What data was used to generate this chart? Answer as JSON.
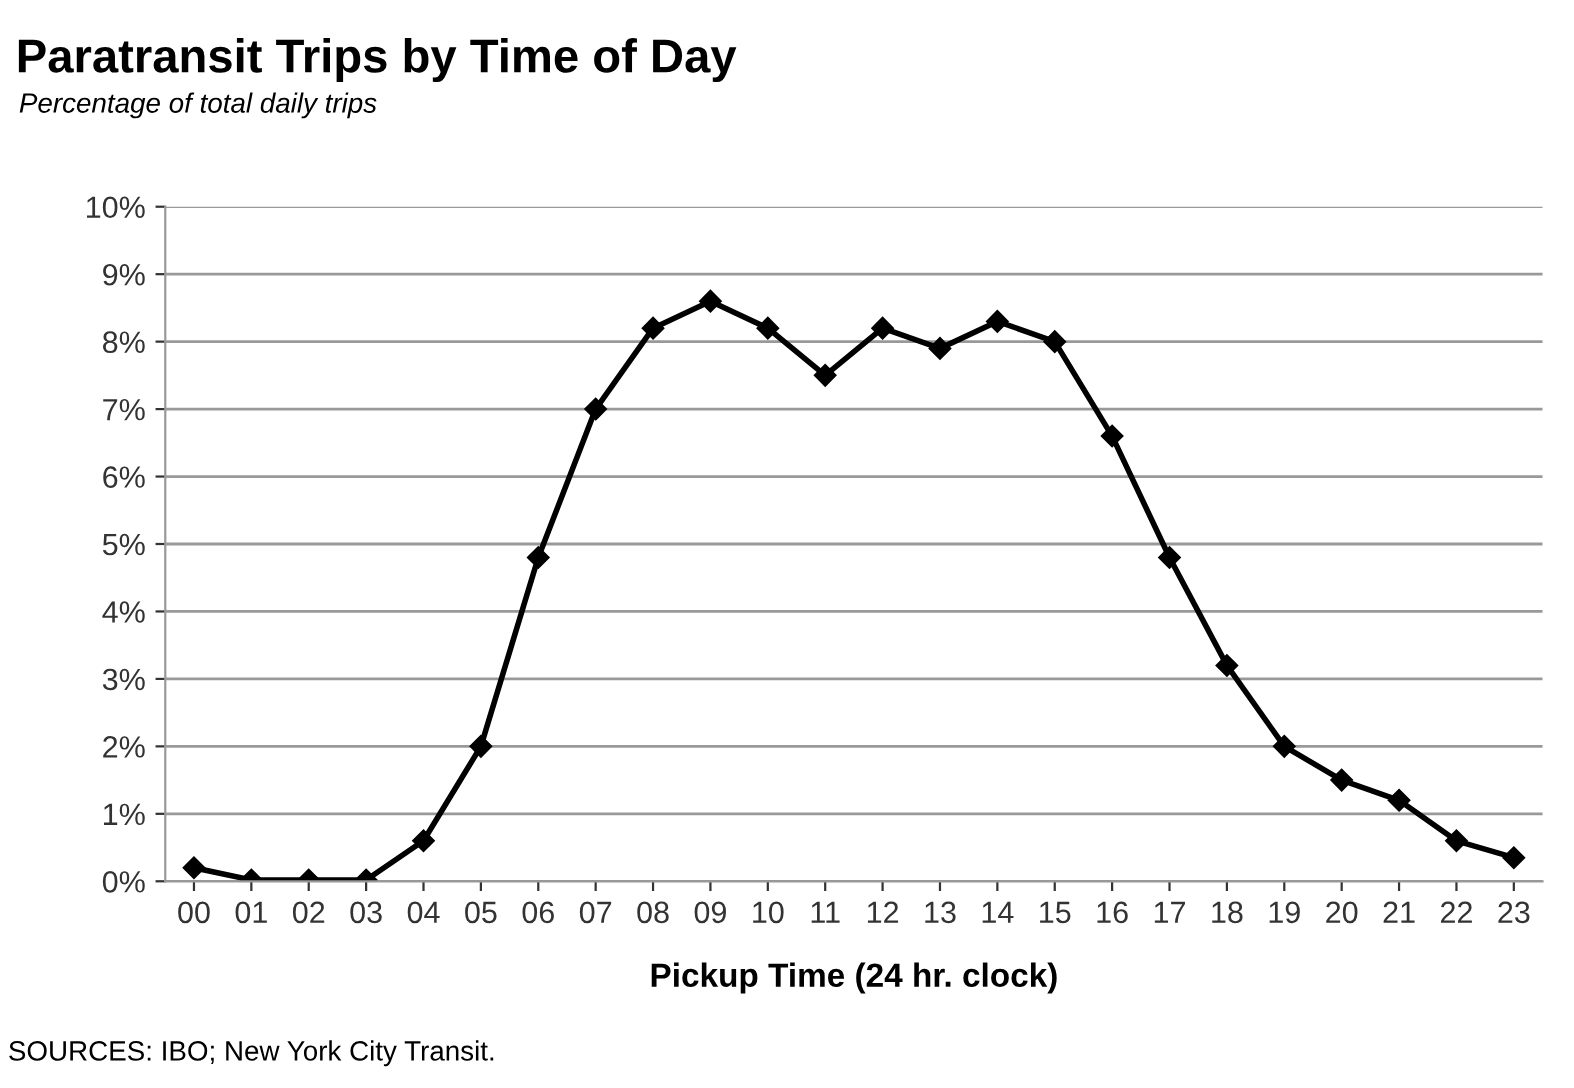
{
  "chart_data": {
    "type": "line",
    "title": "Paratransit Trips by Time of Day",
    "subtitle": "Percentage of total daily trips",
    "xlabel": "Pickup Time (24 hr. clock)",
    "categories": [
      "00",
      "01",
      "02",
      "03",
      "04",
      "05",
      "06",
      "07",
      "08",
      "09",
      "10",
      "11",
      "12",
      "13",
      "14",
      "15",
      "16",
      "17",
      "18",
      "19",
      "20",
      "21",
      "22",
      "23"
    ],
    "series": [
      {
        "color": "#000000",
        "values": [
          0.2,
          0.02,
          0.02,
          0.02,
          0.6,
          2.0,
          4.8,
          7.0,
          8.2,
          8.6,
          8.2,
          7.5,
          8.2,
          7.9,
          8.3,
          8.0,
          6.6,
          4.8,
          3.2,
          2.0,
          1.5,
          1.2,
          0.6,
          0.35
        ]
      }
    ],
    "ylim": [
      0,
      10
    ],
    "yticks": [
      {
        "value": 0,
        "label": "0%"
      },
      {
        "value": 1,
        "label": "1%"
      },
      {
        "value": 2,
        "label": "2%"
      },
      {
        "value": 3,
        "label": "3%"
      },
      {
        "value": 4,
        "label": "4%"
      },
      {
        "value": 5,
        "label": "5%"
      },
      {
        "value": 6,
        "label": "6%"
      },
      {
        "value": 7,
        "label": "7%"
      },
      {
        "value": 8,
        "label": "8%"
      },
      {
        "value": 9,
        "label": "9%"
      },
      {
        "value": 10,
        "label": "10%"
      }
    ],
    "grid": "y",
    "marker": "diamond",
    "line_style": "solid",
    "annotations": [
      "SOURCES: IBO; New York City Transit."
    ]
  }
}
